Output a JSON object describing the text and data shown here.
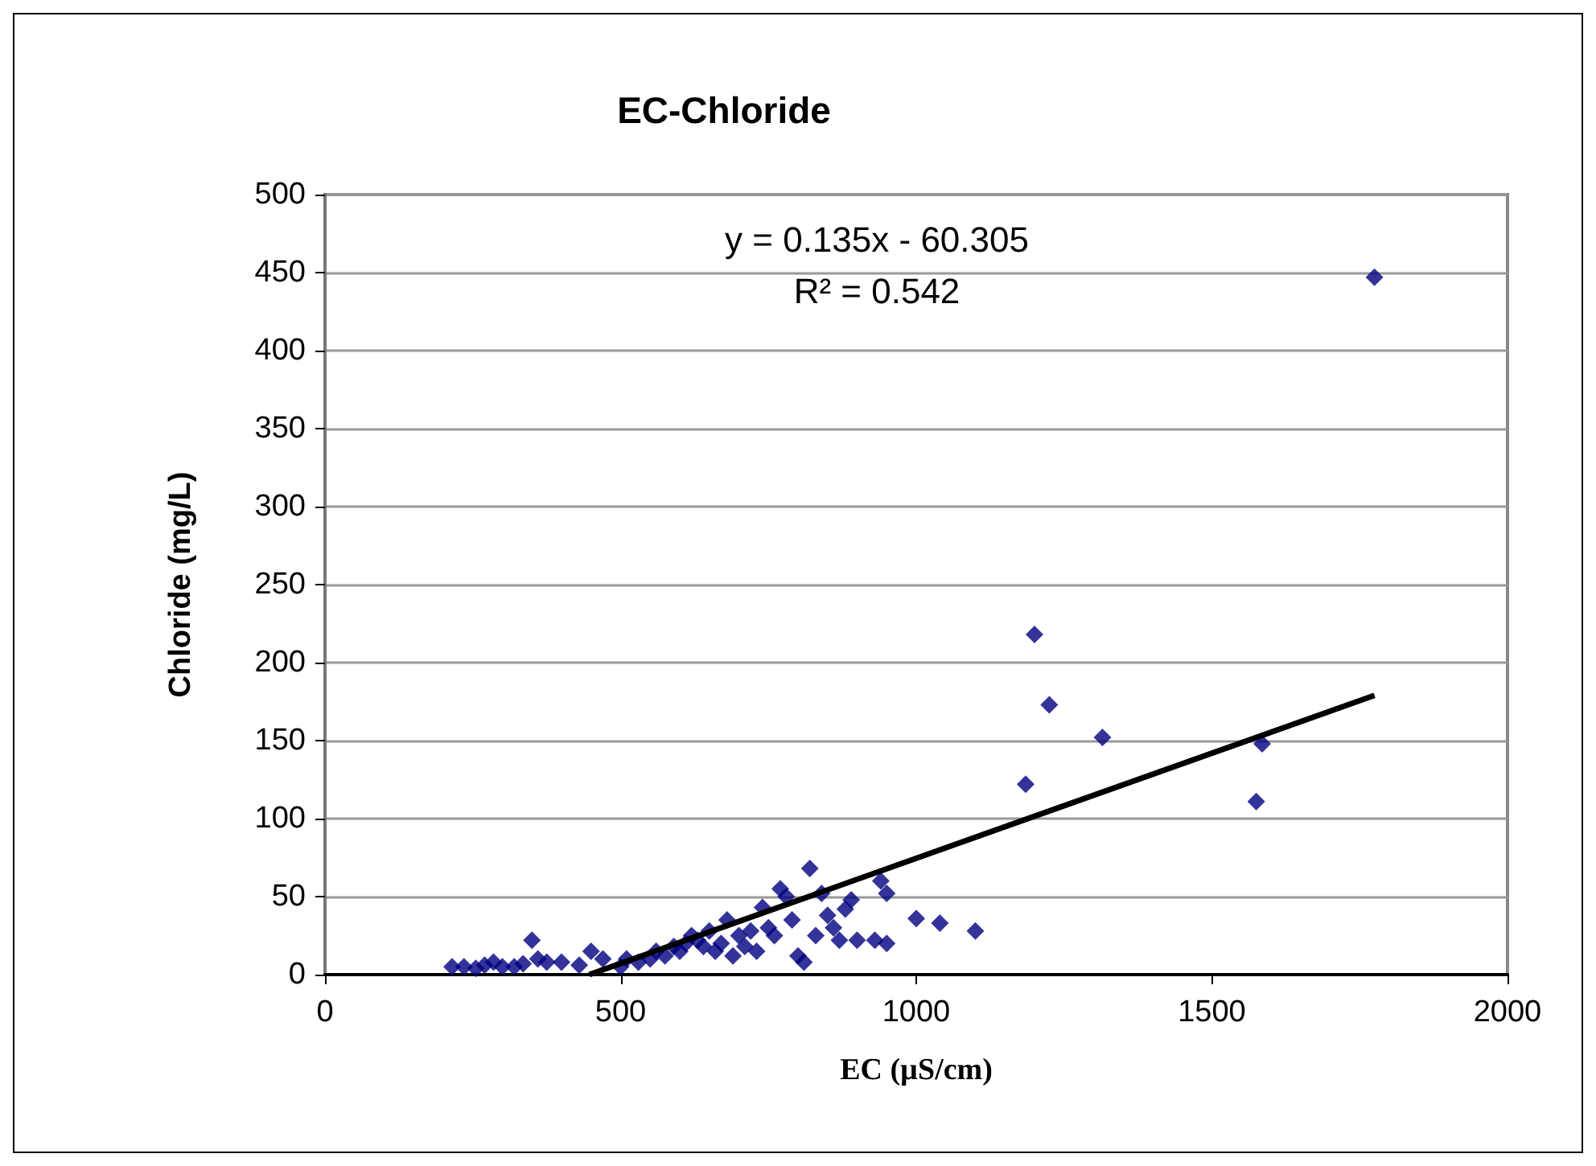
{
  "chart_data": {
    "type": "scatter",
    "title": "EC-Chloride",
    "xlabel": "EC (µS/cm)",
    "ylabel": "Chloride (mg/L)",
    "annotations": [
      "y = 0.135x - 60.305",
      "R² = 0.542"
    ],
    "xlim": [
      0,
      2000
    ],
    "xticks": [
      0,
      500,
      1000,
      1500,
      2000
    ],
    "ylim": [
      0,
      500
    ],
    "yticks": [
      0,
      50,
      100,
      150,
      200,
      250,
      300,
      350,
      400,
      450,
      500
    ],
    "grid": "y",
    "series": [
      {
        "marker": "diamond",
        "color": "#000080",
        "x": [
          215,
          235,
          255,
          270,
          285,
          300,
          320,
          335,
          350,
          360,
          375,
          400,
          430,
          450,
          470,
          500,
          510,
          530,
          550,
          560,
          575,
          590,
          600,
          610,
          620,
          630,
          640,
          650,
          660,
          670,
          680,
          690,
          700,
          710,
          720,
          730,
          740,
          750,
          760,
          770,
          780,
          790,
          800,
          810,
          820,
          830,
          840,
          850,
          860,
          870,
          880,
          890,
          900,
          930,
          940,
          950,
          950,
          1000,
          1040,
          1100,
          1185,
          1200,
          1225,
          1315,
          1575,
          1585,
          1775
        ],
        "values": [
          5,
          5,
          4,
          6,
          8,
          5,
          5,
          7,
          22,
          10,
          8,
          8,
          6,
          15,
          10,
          5,
          10,
          8,
          10,
          15,
          12,
          18,
          15,
          20,
          25,
          22,
          18,
          28,
          15,
          20,
          35,
          12,
          25,
          18,
          28,
          15,
          43,
          30,
          25,
          55,
          50,
          35,
          12,
          8,
          68,
          25,
          52,
          38,
          30,
          22,
          42,
          48,
          22,
          22,
          60,
          52,
          20,
          36,
          33,
          28,
          122,
          218,
          173,
          152,
          111,
          148,
          447
        ]
      },
      {
        "type": "line",
        "marker": "none",
        "color": "#000000",
        "x": [
          447,
          1775
        ],
        "values": [
          0,
          179
        ]
      }
    ]
  }
}
